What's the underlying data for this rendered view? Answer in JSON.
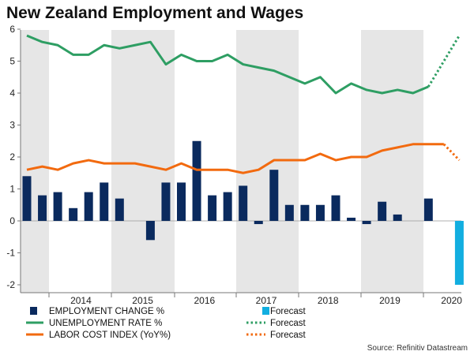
{
  "chart_data": {
    "type": "bar+line",
    "title": "New Zealand Employment and Wages",
    "source": "Source: Refinitiv Datastream",
    "ylim": [
      -2.2,
      6
    ],
    "yticks": [
      "6",
      "5",
      "4",
      "3",
      "2",
      "1",
      "0",
      "-1",
      "-2"
    ],
    "xtick_labels": [
      "2014",
      "2015",
      "2016",
      "2017",
      "2018",
      "2019",
      "2020"
    ],
    "quarters": [
      "2013Q2",
      "2013Q3",
      "2013Q4",
      "2014Q1",
      "2014Q2",
      "2014Q3",
      "2014Q4",
      "2015Q1",
      "2015Q2",
      "2015Q3",
      "2015Q4",
      "2016Q1",
      "2016Q2",
      "2016Q3",
      "2016Q4",
      "2017Q1",
      "2017Q2",
      "2017Q3",
      "2017Q4",
      "2018Q1",
      "2018Q2",
      "2018Q3",
      "2018Q4",
      "2019Q1",
      "2019Q2",
      "2019Q3",
      "2019Q4",
      "2020Q1",
      "2020Q2"
    ],
    "series": [
      {
        "name": "EMPLOYMENT CHANGE %",
        "kind": "bar",
        "color": "#0a2a5e",
        "values": [
          1.4,
          0.8,
          0.9,
          0.4,
          0.9,
          1.2,
          0.7,
          null,
          -0.6,
          1.2,
          1.2,
          2.5,
          0.8,
          0.9,
          1.1,
          -0.1,
          1.6,
          0.5,
          0.5,
          0.5,
          0.8,
          0.1,
          -0.1,
          0.6,
          0.2,
          null,
          0.7,
          null,
          -2.0
        ],
        "forecast_index": 28,
        "forecast_color": "#12aee0",
        "forecast_label": "Forecast"
      },
      {
        "name": "UNEMPLOYMENT RATE %",
        "kind": "line",
        "color": "#2e9e63",
        "values": [
          5.8,
          5.6,
          5.5,
          5.2,
          5.2,
          5.5,
          5.4,
          5.5,
          5.6,
          4.9,
          5.2,
          5.0,
          5.0,
          5.2,
          4.9,
          4.8,
          4.7,
          4.5,
          4.3,
          4.5,
          4.0,
          4.3,
          4.1,
          4.0,
          4.1,
          4.0,
          4.2,
          null,
          5.8
        ],
        "forecast_from_index": 26,
        "forecast_label": "Forecast"
      },
      {
        "name": "LABOR COST INDEX (YoY%)",
        "kind": "line",
        "color": "#f26a0f",
        "values": [
          1.6,
          1.7,
          1.6,
          1.8,
          1.9,
          1.8,
          1.8,
          1.8,
          1.7,
          1.6,
          1.8,
          1.6,
          1.6,
          1.6,
          1.5,
          1.6,
          1.9,
          1.9,
          1.9,
          2.1,
          1.9,
          2.0,
          2.0,
          2.2,
          2.3,
          2.4,
          2.4,
          2.4,
          1.9
        ],
        "forecast_from_index": 27,
        "forecast_label": "Forecast"
      }
    ]
  }
}
